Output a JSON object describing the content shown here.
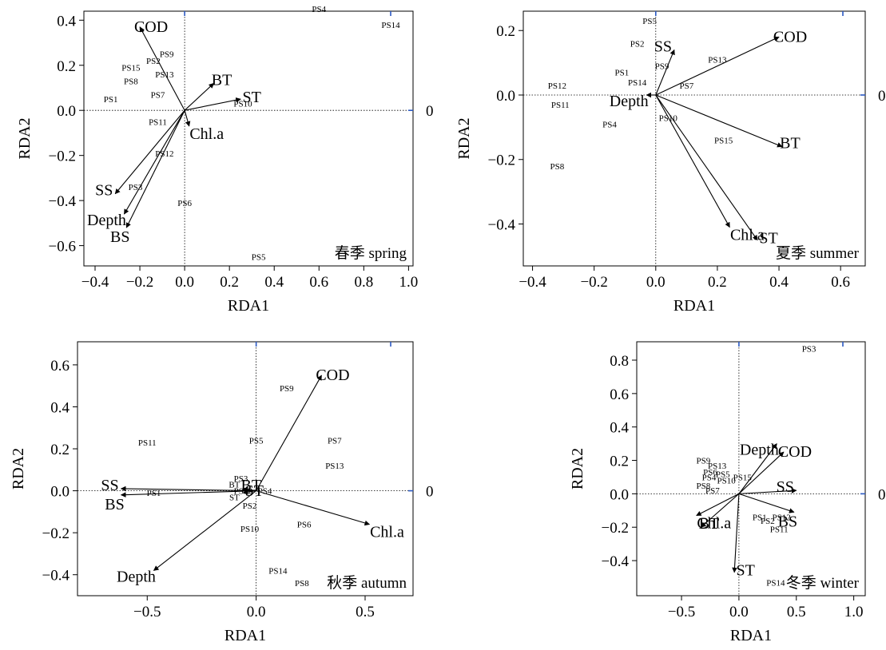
{
  "chart_data": [
    {
      "type": "scatter",
      "season_label": "春季 spring",
      "xlabel": "RDA1",
      "ylabel": "RDA2",
      "right_label": "0",
      "xlim": [
        -0.45,
        1.02
      ],
      "ylim": [
        -0.69,
        0.44
      ],
      "xticks": [
        -0.4,
        -0.2,
        0.0,
        0.2,
        0.4,
        0.6,
        0.8,
        1.0
      ],
      "yticks": [
        -0.6,
        -0.4,
        -0.2,
        0.0,
        0.2,
        0.4
      ],
      "vectors": [
        {
          "name": "COD",
          "x": -0.2,
          "y": 0.37
        },
        {
          "name": "BT",
          "x": 0.13,
          "y": 0.12
        },
        {
          "name": "ST",
          "x": 0.25,
          "y": 0.05
        },
        {
          "name": "Chl.a",
          "x": 0.02,
          "y": -0.07
        },
        {
          "name": "SS",
          "x": -0.31,
          "y": -0.37
        },
        {
          "name": "Depth",
          "x": -0.27,
          "y": -0.46
        },
        {
          "name": "BS",
          "x": -0.26,
          "y": -0.52
        }
      ],
      "sites": [
        {
          "name": "PS4",
          "x": 0.6,
          "y": 0.45
        },
        {
          "name": "PS14",
          "x": 0.92,
          "y": 0.38
        },
        {
          "name": "PS9",
          "x": -0.08,
          "y": 0.25
        },
        {
          "name": "PS2",
          "x": -0.14,
          "y": 0.22
        },
        {
          "name": "PS15",
          "x": -0.24,
          "y": 0.19
        },
        {
          "name": "PS13",
          "x": -0.09,
          "y": 0.16
        },
        {
          "name": "PS8",
          "x": -0.24,
          "y": 0.13
        },
        {
          "name": "PS7",
          "x": -0.12,
          "y": 0.07
        },
        {
          "name": "PS1",
          "x": -0.33,
          "y": 0.05
        },
        {
          "name": "PS10",
          "x": 0.26,
          "y": 0.03
        },
        {
          "name": "PS11",
          "x": -0.12,
          "y": -0.05
        },
        {
          "name": "PS12",
          "x": -0.09,
          "y": -0.19
        },
        {
          "name": "PS3",
          "x": -0.22,
          "y": -0.34
        },
        {
          "name": "PS6",
          "x": 0.0,
          "y": -0.41
        },
        {
          "name": "PS5",
          "x": 0.33,
          "y": -0.65
        }
      ]
    },
    {
      "type": "scatter",
      "season_label": "夏季 summer",
      "xlabel": "RDA1",
      "ylabel": "RDA2",
      "right_label": "0",
      "xlim": [
        -0.43,
        0.68
      ],
      "ylim": [
        -0.53,
        0.26
      ],
      "xticks": [
        -0.4,
        -0.2,
        0.0,
        0.2,
        0.4,
        0.6
      ],
      "yticks": [
        -0.4,
        -0.2,
        0.0,
        0.2
      ],
      "vectors": [
        {
          "name": "COD",
          "x": 0.4,
          "y": 0.18
        },
        {
          "name": "SS",
          "x": 0.06,
          "y": 0.14
        },
        {
          "name": "Depth",
          "x": -0.03,
          "y": 0.0
        },
        {
          "name": "BT",
          "x": 0.41,
          "y": -0.16
        },
        {
          "name": "Chl.a",
          "x": 0.24,
          "y": -0.41
        },
        {
          "name": "ST",
          "x": 0.33,
          "y": -0.45
        }
      ],
      "sites": [
        {
          "name": "PS5",
          "x": -0.02,
          "y": 0.23
        },
        {
          "name": "PS2",
          "x": -0.06,
          "y": 0.16
        },
        {
          "name": "PS9",
          "x": 0.02,
          "y": 0.09
        },
        {
          "name": "PS1",
          "x": -0.11,
          "y": 0.07
        },
        {
          "name": "PS13",
          "x": 0.2,
          "y": 0.11
        },
        {
          "name": "PS14",
          "x": -0.06,
          "y": 0.04
        },
        {
          "name": "PS7",
          "x": 0.1,
          "y": 0.03
        },
        {
          "name": "PS12",
          "x": -0.32,
          "y": 0.03
        },
        {
          "name": "PS11",
          "x": -0.31,
          "y": -0.03
        },
        {
          "name": "PS10",
          "x": 0.04,
          "y": -0.07
        },
        {
          "name": "PS4",
          "x": -0.15,
          "y": -0.09
        },
        {
          "name": "PS15",
          "x": 0.22,
          "y": -0.14
        },
        {
          "name": "PS8",
          "x": -0.32,
          "y": -0.22
        }
      ]
    },
    {
      "type": "scatter",
      "season_label": "秋季 autumn",
      "xlabel": "RDA1",
      "ylabel": "RDA2",
      "right_label": "0",
      "xlim": [
        -0.82,
        0.72
      ],
      "ylim": [
        -0.5,
        0.71
      ],
      "xticks": [
        -0.5,
        0.0,
        0.5
      ],
      "yticks": [
        -0.4,
        -0.2,
        0.0,
        0.2,
        0.4,
        0.6
      ],
      "vectors": [
        {
          "name": "COD",
          "x": 0.3,
          "y": 0.55
        },
        {
          "name": "Chl.a",
          "x": 0.52,
          "y": -0.16
        },
        {
          "name": "Depth",
          "x": -0.47,
          "y": -0.38
        },
        {
          "name": "SS",
          "x": -0.62,
          "y": 0.01
        },
        {
          "name": "BS",
          "x": -0.62,
          "y": -0.02
        },
        {
          "name": "BT",
          "x": -0.06,
          "y": 0.01
        },
        {
          "name": "ST",
          "x": -0.06,
          "y": -0.01
        }
      ],
      "sites": [
        {
          "name": "PS9",
          "x": 0.14,
          "y": 0.49
        },
        {
          "name": "PS11",
          "x": -0.5,
          "y": 0.23
        },
        {
          "name": "PS5",
          "x": 0.0,
          "y": 0.24
        },
        {
          "name": "PS7",
          "x": 0.36,
          "y": 0.24
        },
        {
          "name": "PS13",
          "x": 0.36,
          "y": 0.12
        },
        {
          "name": "PS3",
          "x": -0.07,
          "y": 0.06
        },
        {
          "name": "BT",
          "x": -0.1,
          "y": 0.03
        },
        {
          "name": "PS12",
          "x": -0.06,
          "y": 0.0
        },
        {
          "name": "PS4",
          "x": 0.04,
          "y": 0.0
        },
        {
          "name": "PS1",
          "x": -0.47,
          "y": -0.01
        },
        {
          "name": "ST",
          "x": -0.1,
          "y": -0.03
        },
        {
          "name": "PS2",
          "x": -0.03,
          "y": -0.07
        },
        {
          "name": "PS6",
          "x": 0.22,
          "y": -0.16
        },
        {
          "name": "PS10",
          "x": -0.03,
          "y": -0.18
        },
        {
          "name": "PS14",
          "x": 0.1,
          "y": -0.38
        },
        {
          "name": "PS8",
          "x": 0.21,
          "y": -0.44
        }
      ]
    },
    {
      "type": "scatter",
      "season_label": "冬季 winter",
      "xlabel": "RDA1",
      "ylabel": "RDA2",
      "right_label": "0",
      "xlim": [
        -0.89,
        1.1
      ],
      "ylim": [
        -0.61,
        0.91
      ],
      "xticks": [
        -0.5,
        0.0,
        0.5,
        1.0
      ],
      "yticks": [
        -0.4,
        -0.2,
        0.0,
        0.2,
        0.4,
        0.6,
        0.8
      ],
      "vectors": [
        {
          "name": "Depth",
          "x": 0.33,
          "y": 0.3
        },
        {
          "name": "COD",
          "x": 0.39,
          "y": 0.25
        },
        {
          "name": "SS",
          "x": 0.5,
          "y": 0.02
        },
        {
          "name": "BS",
          "x": 0.48,
          "y": -0.11
        },
        {
          "name": "Chl.a",
          "x": -0.37,
          "y": -0.13
        },
        {
          "name": "BT",
          "x": -0.33,
          "y": -0.2
        },
        {
          "name": "ST",
          "x": -0.04,
          "y": -0.47
        }
      ],
      "sites": [
        {
          "name": "PS3",
          "x": 0.61,
          "y": 0.87
        },
        {
          "name": "PS9",
          "x": -0.31,
          "y": 0.2
        },
        {
          "name": "PS13",
          "x": -0.19,
          "y": 0.17
        },
        {
          "name": "PS6",
          "x": -0.25,
          "y": 0.13
        },
        {
          "name": "PS5",
          "x": -0.14,
          "y": 0.12
        },
        {
          "name": "PS4",
          "x": -0.26,
          "y": 0.1
        },
        {
          "name": "PS10",
          "x": -0.11,
          "y": 0.08
        },
        {
          "name": "PS15",
          "x": 0.03,
          "y": 0.1
        },
        {
          "name": "PS8",
          "x": -0.31,
          "y": 0.05
        },
        {
          "name": "PS7",
          "x": -0.23,
          "y": 0.02
        },
        {
          "name": "PS1",
          "x": 0.18,
          "y": -0.14
        },
        {
          "name": "PS2",
          "x": 0.25,
          "y": -0.16
        },
        {
          "name": "PS12",
          "x": 0.37,
          "y": -0.14
        },
        {
          "name": "PS11",
          "x": 0.35,
          "y": -0.21
        },
        {
          "name": "PS14",
          "x": 0.32,
          "y": -0.53
        }
      ]
    }
  ]
}
